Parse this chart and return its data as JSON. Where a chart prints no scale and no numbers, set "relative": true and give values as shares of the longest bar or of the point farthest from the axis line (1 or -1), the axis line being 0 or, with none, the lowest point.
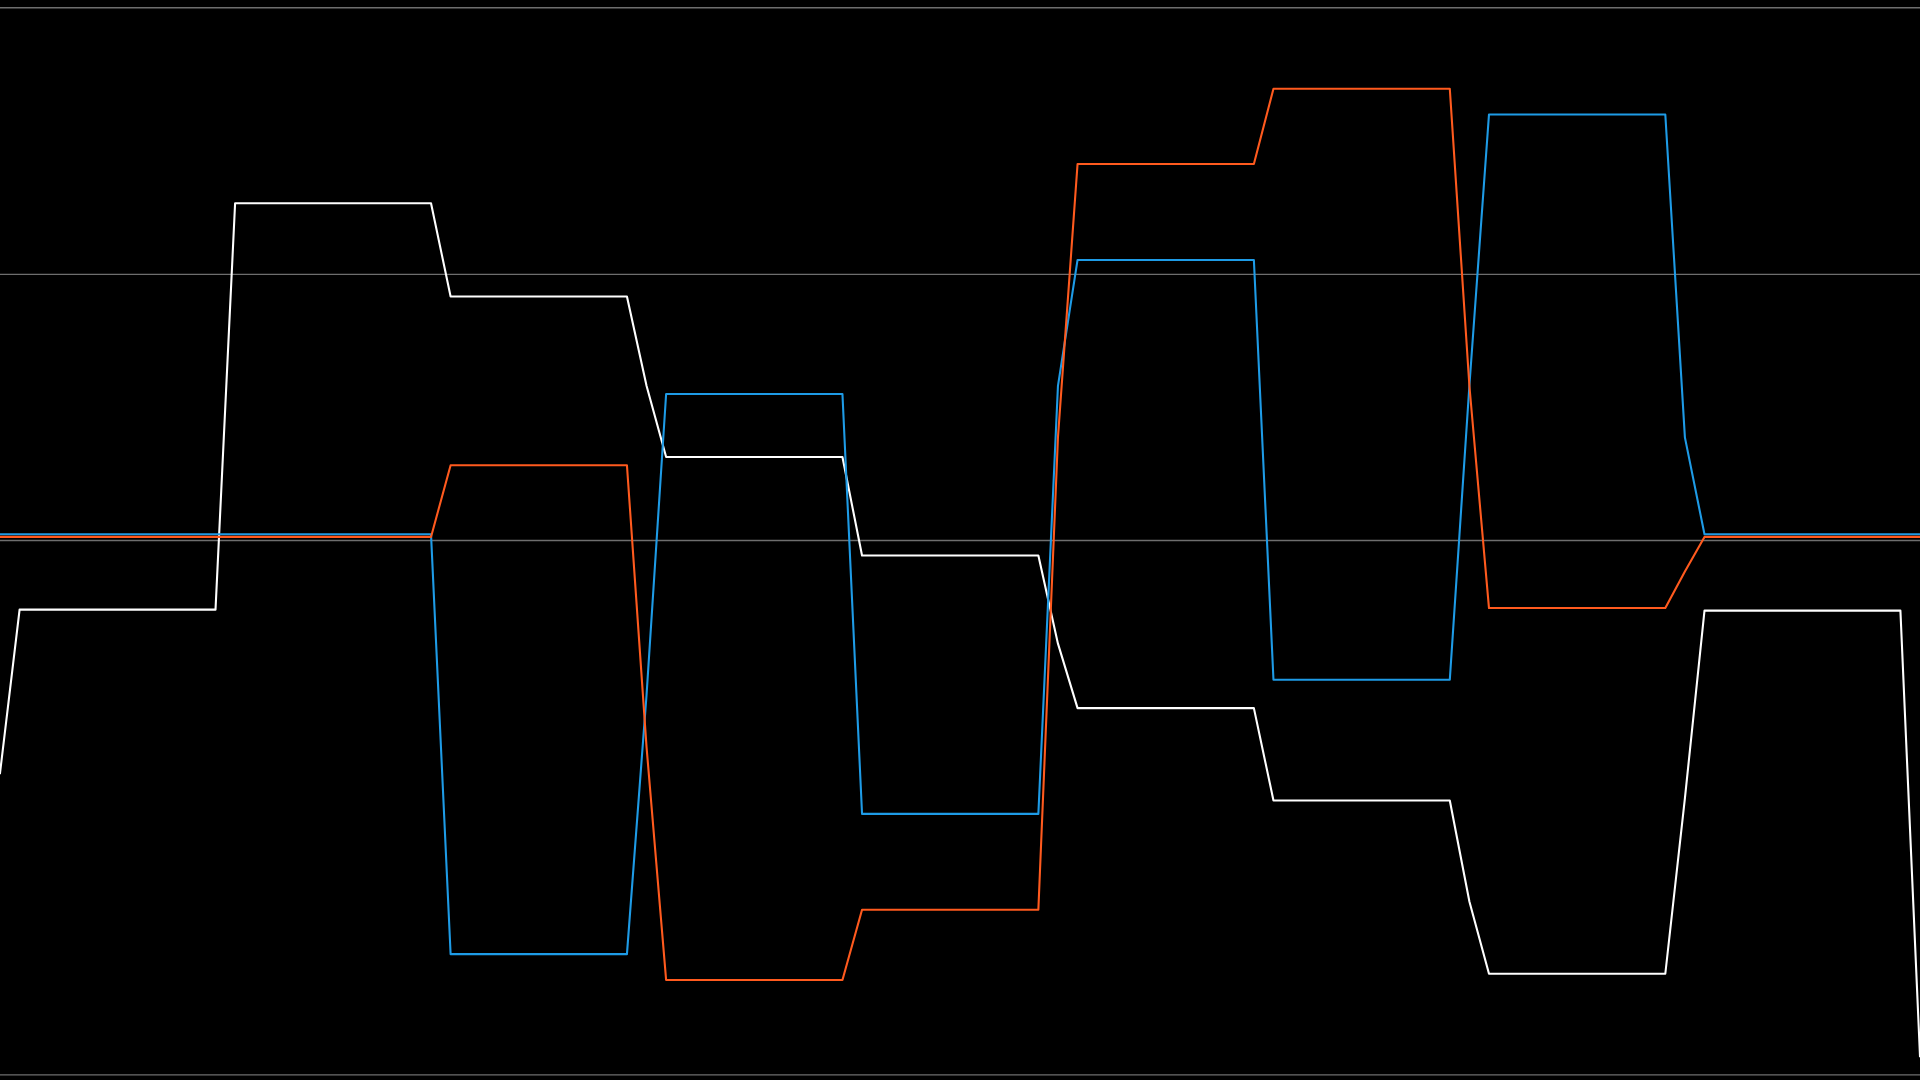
{
  "chart_data": {
    "type": "line",
    "relative": true,
    "legend": false,
    "marker": "none",
    "line_style": "solid",
    "categories": [
      null,
      null,
      null,
      null,
      null,
      null,
      null,
      null,
      null,
      null,
      null,
      null,
      null,
      null,
      null,
      null,
      null,
      null,
      null,
      null,
      null,
      null,
      null,
      null,
      null,
      null,
      null,
      null,
      null,
      null,
      null,
      null,
      null,
      null,
      null,
      null,
      null,
      null,
      null,
      null,
      null,
      null,
      null,
      null,
      null,
      null,
      null,
      null,
      null,
      null,
      null,
      null,
      null,
      null,
      null,
      null,
      null,
      null,
      null,
      null,
      null,
      null,
      null,
      null,
      null,
      null,
      null,
      null,
      null,
      null,
      null,
      null,
      null,
      null,
      null,
      null,
      null,
      null,
      null,
      null,
      null,
      null,
      null,
      null,
      null,
      null,
      null,
      null,
      null,
      null,
      null,
      null,
      null,
      null,
      null,
      null,
      null,
      null,
      null
    ],
    "ref_lines": [
      {
        "axis": "y",
        "value": 1.033,
        "color": "#6e6e6e"
      },
      {
        "axis": "y",
        "value": 0.516,
        "color": "#6e6e6e"
      },
      {
        "axis": "y",
        "value": 0,
        "color": "#6e6e6e"
      },
      {
        "axis": "y",
        "value": -1.036,
        "color": "#6e6e6e"
      }
    ],
    "series": [
      {
        "color": "#ffffff",
        "values": [
          -0.451,
          -0.134,
          -0.134,
          -0.134,
          -0.134,
          -0.134,
          -0.134,
          -0.134,
          -0.134,
          -0.134,
          -0.134,
          -0.134,
          0.654,
          0.654,
          0.654,
          0.654,
          0.654,
          0.654,
          0.654,
          0.654,
          0.654,
          0.654,
          0.654,
          0.473,
          0.473,
          0.473,
          0.473,
          0.473,
          0.473,
          0.473,
          0.473,
          0.473,
          0.473,
          0.3,
          0.162,
          0.162,
          0.162,
          0.162,
          0.162,
          0.162,
          0.162,
          0.162,
          0.162,
          0.162,
          -0.029,
          -0.029,
          -0.029,
          -0.029,
          -0.029,
          -0.029,
          -0.029,
          -0.029,
          -0.029,
          -0.029,
          -0.2,
          -0.325,
          -0.325,
          -0.325,
          -0.325,
          -0.325,
          -0.325,
          -0.325,
          -0.325,
          -0.325,
          -0.325,
          -0.504,
          -0.504,
          -0.504,
          -0.504,
          -0.504,
          -0.504,
          -0.504,
          -0.504,
          -0.504,
          -0.504,
          -0.7,
          -0.84,
          -0.84,
          -0.84,
          -0.84,
          -0.84,
          -0.84,
          -0.84,
          -0.84,
          -0.84,
          -0.84,
          -0.5,
          -0.136,
          -0.136,
          -0.136,
          -0.136,
          -0.136,
          -0.136,
          -0.136,
          -0.136,
          -0.136,
          -0.136,
          -0.136,
          -1
        ]
      },
      {
        "color": "#1e9be6",
        "values": [
          0.012,
          0.012,
          0.012,
          0.012,
          0.012,
          0.012,
          0.012,
          0.012,
          0.012,
          0.012,
          0.012,
          0.012,
          0.012,
          0.012,
          0.012,
          0.012,
          0.012,
          0.012,
          0.012,
          0.012,
          0.012,
          0.012,
          0.012,
          -0.802,
          -0.802,
          -0.802,
          -0.802,
          -0.802,
          -0.802,
          -0.802,
          -0.802,
          -0.802,
          -0.802,
          -0.3,
          0.284,
          0.284,
          0.284,
          0.284,
          0.284,
          0.284,
          0.284,
          0.284,
          0.284,
          0.284,
          -0.53,
          -0.53,
          -0.53,
          -0.53,
          -0.53,
          -0.53,
          -0.53,
          -0.53,
          -0.53,
          -0.53,
          0.3,
          0.544,
          0.544,
          0.544,
          0.544,
          0.544,
          0.544,
          0.544,
          0.544,
          0.544,
          0.544,
          -0.27,
          -0.27,
          -0.27,
          -0.27,
          -0.27,
          -0.27,
          -0.27,
          -0.27,
          -0.27,
          -0.27,
          0.3,
          0.826,
          0.826,
          0.826,
          0.826,
          0.826,
          0.826,
          0.826,
          0.826,
          0.826,
          0.826,
          0.2,
          0.012,
          0.012,
          0.012,
          0.012,
          0.012,
          0.012,
          0.012,
          0.012,
          0.012,
          0.012,
          0.012,
          0.012
        ]
      },
      {
        "color": "#ff5a1e",
        "values": [
          0.007,
          0.007,
          0.007,
          0.007,
          0.007,
          0.007,
          0.007,
          0.007,
          0.007,
          0.007,
          0.007,
          0.007,
          0.007,
          0.007,
          0.007,
          0.007,
          0.007,
          0.007,
          0.007,
          0.007,
          0.007,
          0.007,
          0.007,
          0.146,
          0.146,
          0.146,
          0.146,
          0.146,
          0.146,
          0.146,
          0.146,
          0.146,
          0.146,
          -0.4,
          -0.852,
          -0.852,
          -0.852,
          -0.852,
          -0.852,
          -0.852,
          -0.852,
          -0.852,
          -0.852,
          -0.852,
          -0.716,
          -0.716,
          -0.716,
          -0.716,
          -0.716,
          -0.716,
          -0.716,
          -0.716,
          -0.716,
          -0.716,
          0.2,
          0.73,
          0.73,
          0.73,
          0.73,
          0.73,
          0.73,
          0.73,
          0.73,
          0.73,
          0.73,
          0.876,
          0.876,
          0.876,
          0.876,
          0.876,
          0.876,
          0.876,
          0.876,
          0.876,
          0.876,
          0.3,
          -0.131,
          -0.131,
          -0.131,
          -0.131,
          -0.131,
          -0.131,
          -0.131,
          -0.131,
          -0.131,
          -0.131,
          -0.06,
          0.007,
          0.007,
          0.007,
          0.007,
          0.007,
          0.007,
          0.007,
          0.007,
          0.007,
          0.007,
          0.007,
          0.007
        ]
      }
    ]
  }
}
